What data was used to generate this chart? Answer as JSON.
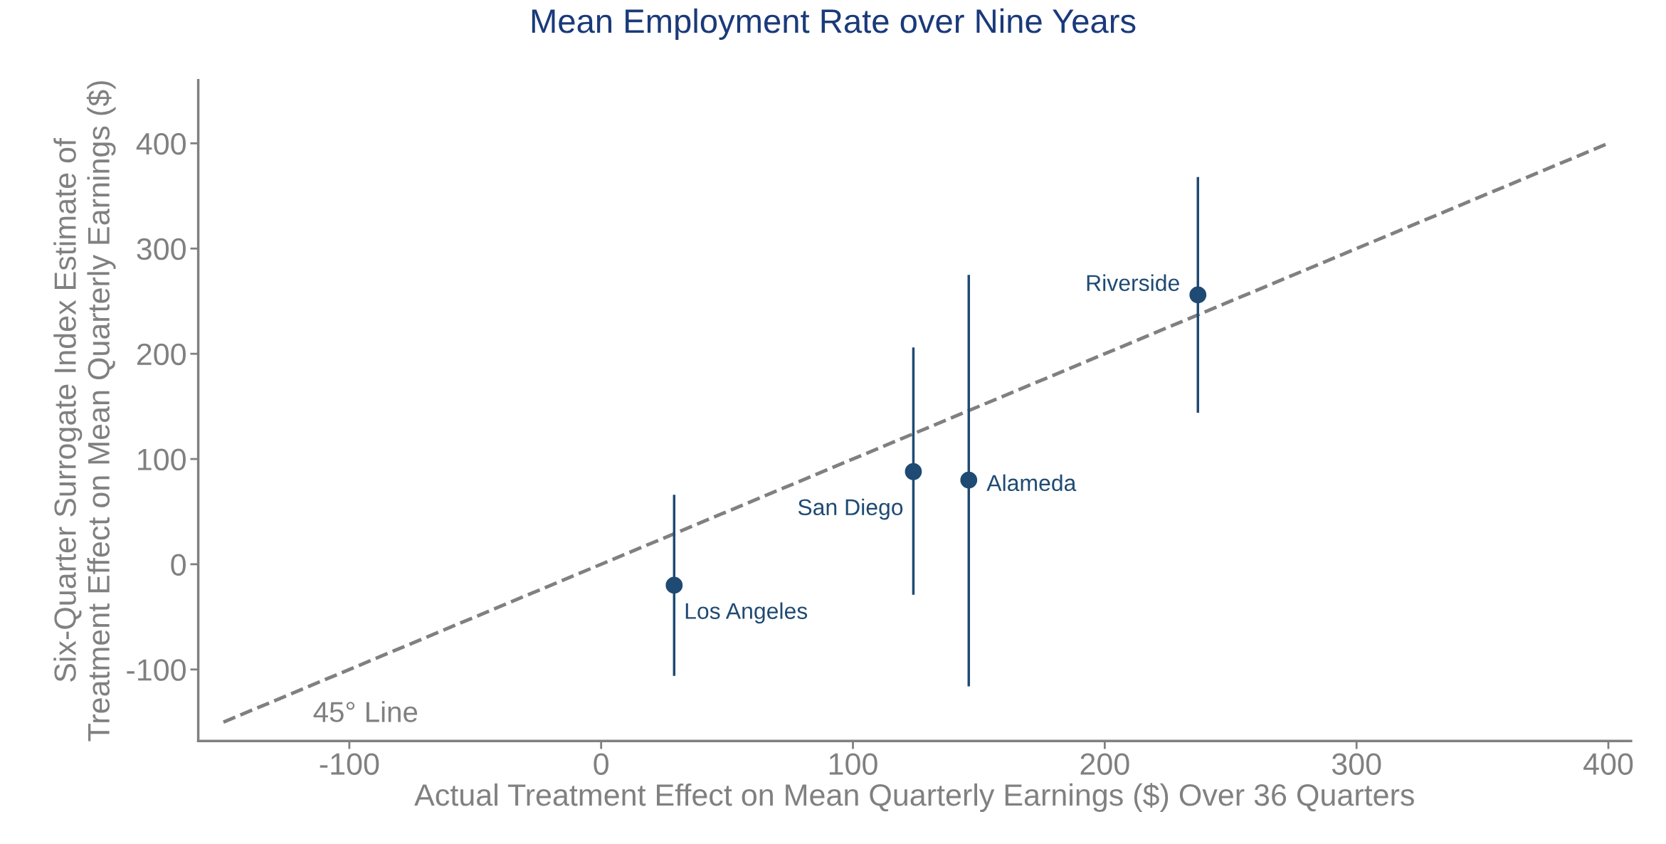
{
  "chart_data": {
    "type": "scatter",
    "title": "Mean Employment Rate over Nine Years",
    "xlabel": "Actual Treatment Effect on Mean Quarterly Earnings ($) Over 36 Quarters",
    "ylabel": "Six-Quarter Surrogate Index Estimate of\nTreatment Effect on Mean Quarterly Earnings ($)",
    "series": [
      {
        "type": "line",
        "color": "#808080",
        "line_style": "dashed",
        "marker": "none",
        "x": [
          -150,
          400
        ],
        "values": [
          -150,
          400
        ]
      },
      {
        "color": "#1f4a73",
        "marker": "circle",
        "x": [
          29,
          124,
          146,
          237
        ],
        "values": [
          -20,
          88,
          80,
          256
        ],
        "errors": [
          [
            -106,
            66
          ],
          [
            -29,
            206
          ],
          [
            -116,
            275
          ],
          [
            144,
            368
          ]
        ]
      }
    ],
    "annotations": [
      {
        "text": "Los Angeles",
        "x": 29,
        "y": -20
      },
      {
        "text": "San Diego",
        "x": 124,
        "y": 88
      },
      {
        "text": "Alameda",
        "x": 146,
        "y": 80
      },
      {
        "text": "Riverside",
        "x": 237,
        "y": 256
      },
      "45° Line"
    ],
    "xlim": [
      -160,
      409
    ],
    "ylim": [
      -168,
      460
    ],
    "xticks": [
      -100,
      0,
      100,
      200,
      300,
      400
    ],
    "yticks": [
      -100,
      0,
      100,
      200,
      300,
      400
    ],
    "grid": false,
    "legend": false
  }
}
